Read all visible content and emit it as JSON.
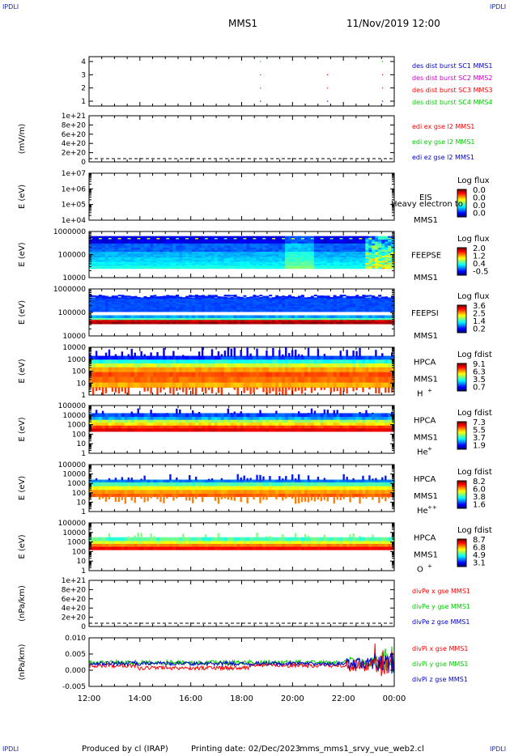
{
  "corners": {
    "tl": "IPDLI",
    "tr": "IPDLI",
    "bl": "IPDLI",
    "br": "IPDLI"
  },
  "header": {
    "mission": "MMS1",
    "datetime": "11/Nov/2019 12:00"
  },
  "footer": {
    "produced": "Produced by cl (IRAP)",
    "printing": "Printing date: 02/Dec/2023",
    "file": "mms_mms1_srvy_vue_web2.cl"
  },
  "colors": {
    "red": "#ff0000",
    "green": "#00cc00",
    "blue": "#0000cc",
    "magenta": "#cc00cc"
  },
  "chart_data": [
    {
      "type": "scatter",
      "id": "p1",
      "yticks": [
        "4",
        "3",
        "2",
        "1"
      ],
      "legend": [
        {
          "label": "des dist burst SC1 MMS1",
          "color": "#0000cc"
        },
        {
          "label": "des dist burst SC2 MMS2",
          "color": "#cc00cc"
        },
        {
          "label": "des dist burst SC3 MMS3",
          "color": "#ff0000"
        },
        {
          "label": "des dist burst SC4 MMS4",
          "color": "#00cc00"
        }
      ]
    },
    {
      "type": "line",
      "id": "p2",
      "ylabel": "(mV/m)",
      "yticks": [
        "1e+21",
        "8e+20",
        "6e+20",
        "4e+20",
        "2e+20",
        "0"
      ],
      "legend": [
        {
          "label": "edi ex gse l2 MMS1",
          "color": "#ff0000"
        },
        {
          "label": "edi ey gse l2 MMS1",
          "color": "#00cc00"
        },
        {
          "label": "edi ez gse l2 MMS1",
          "color": "#0000cc"
        }
      ]
    },
    {
      "type": "heatmap",
      "id": "p3",
      "ylabel": "E (eV)",
      "yticks": [
        "1e+07",
        "1e+06",
        "1e+05",
        "1e+04"
      ],
      "instrument": "EIS",
      "sc": "MMS1",
      "overlay": "Heavy electron to",
      "cb_title": "Log flux",
      "cb_ticks": [
        "0.0",
        "0.0",
        "0.0",
        "0.0"
      ]
    },
    {
      "type": "heatmap",
      "id": "p4",
      "ylabel": "E (eV)",
      "yticks": [
        "1000000",
        "100000",
        "10000"
      ],
      "instrument": "FEEPSE",
      "sc": "MMS1",
      "cb_title": "Log flux",
      "cb_ticks": [
        "2.0",
        "1.2",
        "0.4",
        "-0.5"
      ]
    },
    {
      "type": "heatmap",
      "id": "p5",
      "ylabel": "E (eV)",
      "yticks": [
        "1000000",
        "100000",
        "10000"
      ],
      "instrument": "FEEPSI",
      "sc": "MMS1",
      "cb_title": "Log flux",
      "cb_ticks": [
        "3.6",
        "2.5",
        "1.4",
        "0.2"
      ]
    },
    {
      "type": "heatmap",
      "id": "p6",
      "ylabel": "E (eV)",
      "yticks": [
        "10000",
        "1000",
        "100",
        "10",
        "1"
      ],
      "instrument": "HPCA",
      "sc": "MMS1",
      "species": "H",
      "sup": "+",
      "cb_title": "Log fdist",
      "cb_ticks": [
        "9.1",
        "6.3",
        "3.5",
        "0.7"
      ]
    },
    {
      "type": "heatmap",
      "id": "p7",
      "ylabel": "E (eV)",
      "yticks": [
        "100000",
        "10000",
        "1000",
        "100",
        "10",
        "1"
      ],
      "instrument": "HPCA",
      "sc": "MMS1",
      "species": "He",
      "sup": "+",
      "cb_title": "Log fdist",
      "cb_ticks": [
        "7.3",
        "5.5",
        "3.7",
        "1.9"
      ]
    },
    {
      "type": "heatmap",
      "id": "p8",
      "ylabel": "E (eV)",
      "yticks": [
        "100000",
        "10000",
        "1000",
        "100",
        "10",
        "1"
      ],
      "instrument": "HPCA",
      "sc": "MMS1",
      "species": "He",
      "sup": "++",
      "cb_title": "Log fdist",
      "cb_ticks": [
        "8.2",
        "6.0",
        "3.8",
        "1.6"
      ]
    },
    {
      "type": "heatmap",
      "id": "p9",
      "ylabel": "E (eV)",
      "yticks": [
        "100000",
        "10000",
        "1000",
        "100",
        "10",
        "1"
      ],
      "instrument": "HPCA",
      "sc": "MMS1",
      "species": "O",
      "sup": "+",
      "cb_title": "Log fdist",
      "cb_ticks": [
        "8.7",
        "6.8",
        "4.9",
        "3.1"
      ]
    },
    {
      "type": "line",
      "id": "p10",
      "ylabel": "(nPa/km)",
      "yticks": [
        "1e+21",
        "8e+20",
        "6e+20",
        "4e+20",
        "2e+20",
        "0"
      ],
      "legend": [
        {
          "label": "divPe x gse MMS1",
          "color": "#ff0000"
        },
        {
          "label": "divPe y gse MMS1",
          "color": "#00cc00"
        },
        {
          "label": "divPe z gse MMS1",
          "color": "#0000cc"
        }
      ]
    },
    {
      "type": "line",
      "id": "p11",
      "ylabel": "(nPa/km)",
      "yticks": [
        "0.010",
        "0.005",
        "0.000",
        "-0.005"
      ],
      "legend": [
        {
          "label": "divPi x gse MMS1",
          "color": "#ff0000"
        },
        {
          "label": "divPi y gse MMS1",
          "color": "#00cc00"
        },
        {
          "label": "divPi z gse MMS1",
          "color": "#0000cc"
        }
      ]
    }
  ],
  "xaxis": {
    "ticks": [
      "12:00",
      "14:00",
      "16:00",
      "18:00",
      "20:00",
      "22:00",
      "00:00"
    ]
  }
}
